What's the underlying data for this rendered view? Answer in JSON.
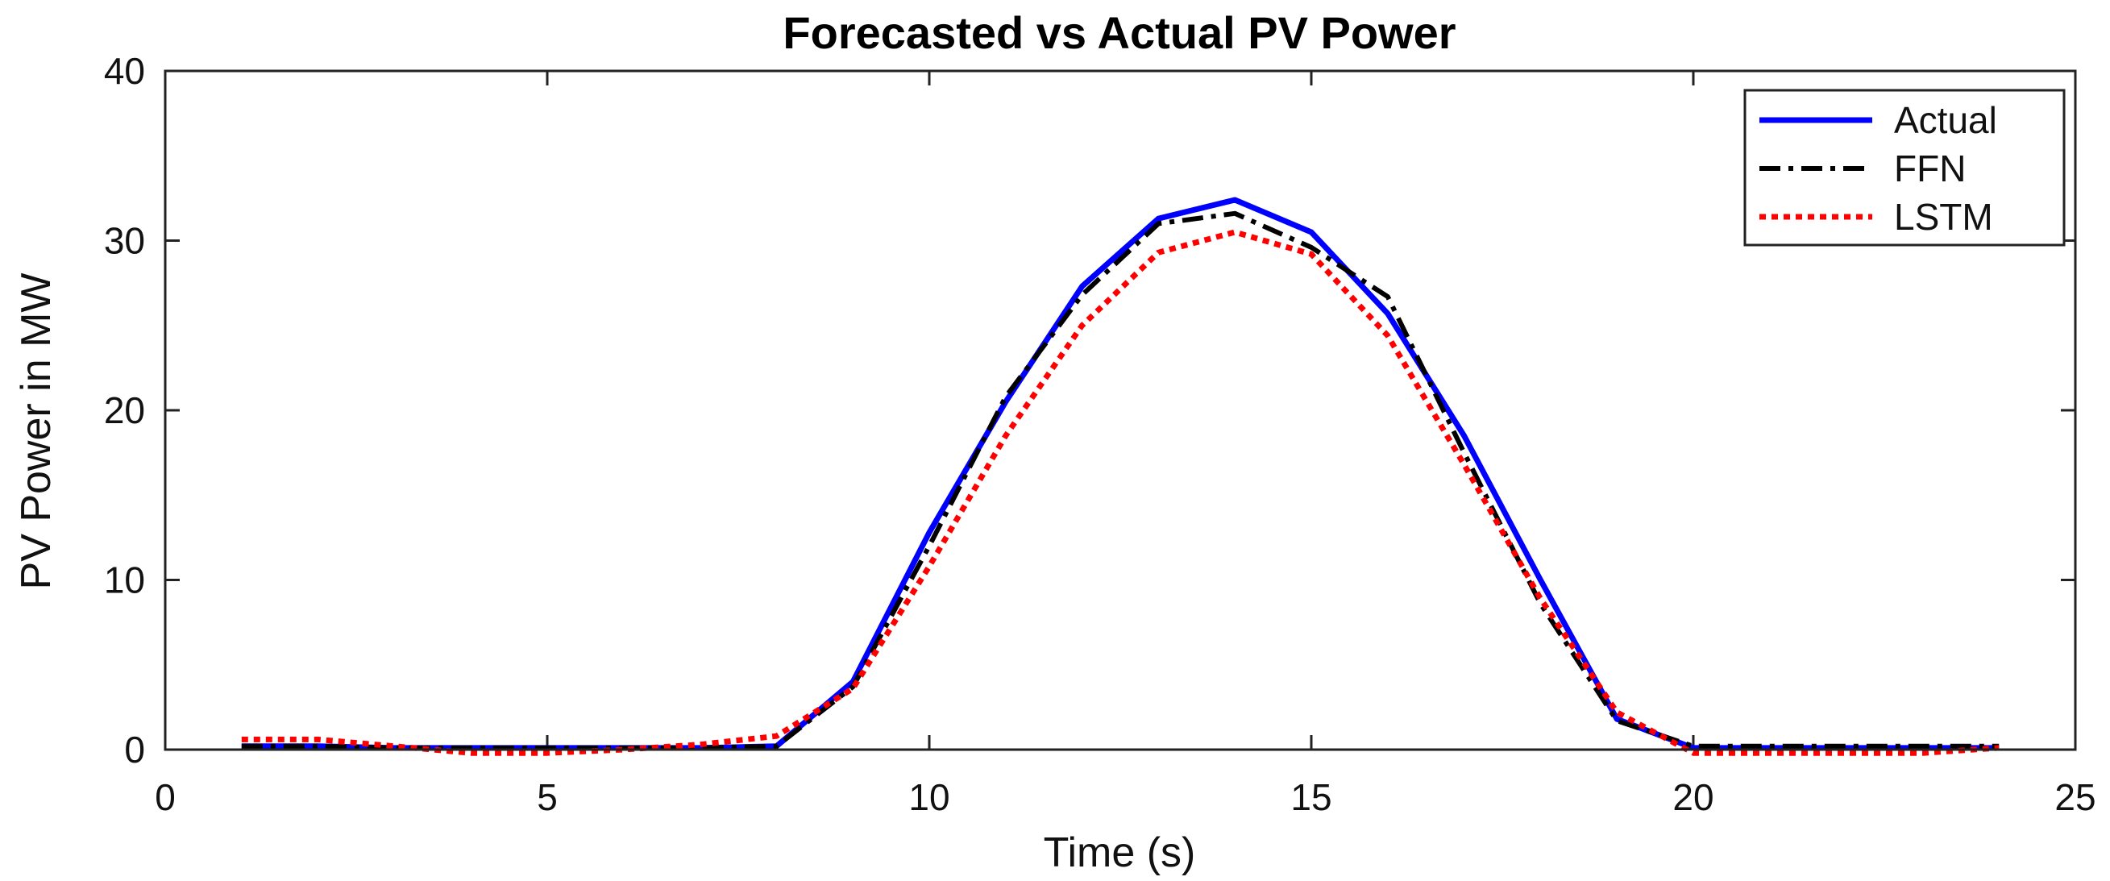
{
  "chart_data": {
    "type": "line",
    "title": "Forecasted vs Actual PV Power",
    "xlabel": "Time (s)",
    "ylabel": "PV Power in MW",
    "xlim": [
      0,
      25
    ],
    "ylim": [
      0,
      40
    ],
    "xticks": [
      0,
      5,
      10,
      15,
      20,
      25
    ],
    "yticks": [
      0,
      10,
      20,
      30,
      40
    ],
    "legend_position": "top-right",
    "x": [
      1,
      2,
      3,
      4,
      5,
      6,
      7,
      8,
      9,
      10,
      11,
      12,
      13,
      14,
      15,
      16,
      17,
      18,
      19,
      20,
      21,
      22,
      23,
      24
    ],
    "series": [
      {
        "name": "Actual",
        "color": "#0000ff",
        "style": "solid",
        "values": [
          0.2,
          0.2,
          0.1,
          0.1,
          0.1,
          0.1,
          0.1,
          0.2,
          4.0,
          12.8,
          20.5,
          27.3,
          31.3,
          32.4,
          30.5,
          25.7,
          18.5,
          10.0,
          1.8,
          0.1,
          0.1,
          0.1,
          0.1,
          0.1
        ]
      },
      {
        "name": "FFN",
        "color": "#000000",
        "style": "dashdot",
        "values": [
          0.2,
          0.2,
          0.1,
          0.1,
          0.1,
          0.1,
          0.1,
          0.2,
          3.7,
          12.0,
          20.8,
          26.8,
          31.0,
          31.6,
          29.6,
          26.7,
          17.5,
          8.6,
          1.7,
          0.2,
          0.2,
          0.2,
          0.2,
          0.2
        ]
      },
      {
        "name": "LSTM",
        "color": "#ff0000",
        "style": "dotted",
        "values": [
          0.6,
          0.6,
          0.2,
          -0.2,
          -0.2,
          0.0,
          0.3,
          0.8,
          3.6,
          10.8,
          18.5,
          25.0,
          29.3,
          30.5,
          29.2,
          24.4,
          16.8,
          8.9,
          2.2,
          -0.2,
          -0.2,
          -0.2,
          -0.2,
          0.1
        ]
      }
    ]
  }
}
